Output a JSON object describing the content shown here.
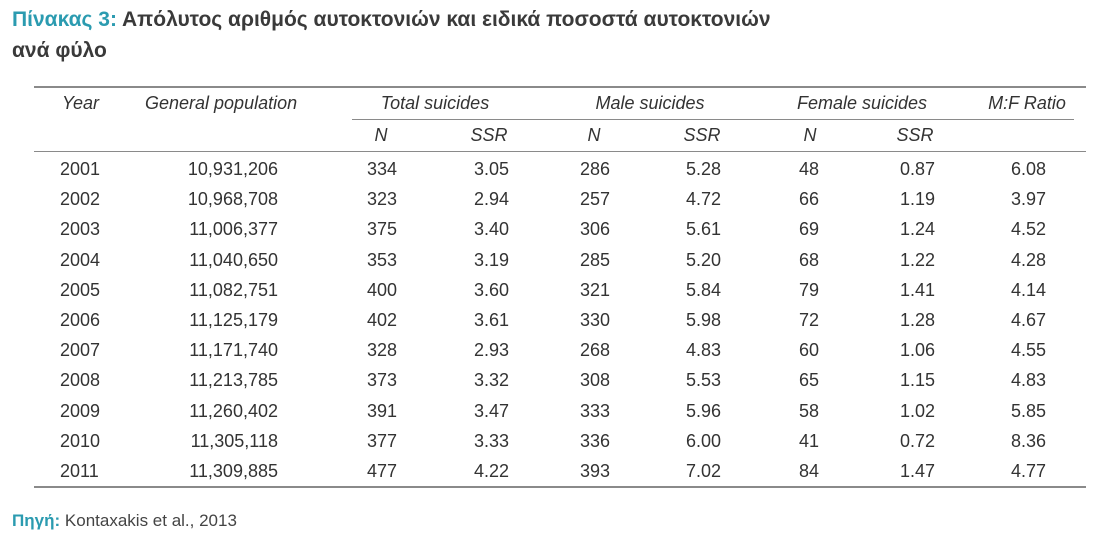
{
  "title": {
    "prefix": "Πίνακας 3:",
    "line1": "Απόλυτος αριθμός αυτοκτονιών και ειδικά ποσοστά αυτοκτονιών",
    "line2": "ανά φύλο"
  },
  "table": {
    "headers": {
      "year": "Year",
      "population": "General population",
      "total": "Total suicides",
      "male": "Male suicides",
      "female": "Female suicides",
      "ratio": "M:F Ratio"
    },
    "subheaders": {
      "total_n": "N",
      "total_ssr": "SSR",
      "male_n": "N",
      "male_ssr": "SSR",
      "female_n": "N",
      "female_ssr": "SSR"
    },
    "rows": [
      [
        "2001",
        "10,931,206",
        "334",
        "3.05",
        "286",
        "5.28",
        "48",
        "0.87",
        "6.08"
      ],
      [
        "2002",
        "10,968,708",
        "323",
        "2.94",
        "257",
        "4.72",
        "66",
        "1.19",
        "3.97"
      ],
      [
        "2003",
        "11,006,377",
        "375",
        "3.40",
        "306",
        "5.61",
        "69",
        "1.24",
        "4.52"
      ],
      [
        "2004",
        "11,040,650",
        "353",
        "3.19",
        "285",
        "5.20",
        "68",
        "1.22",
        "4.28"
      ],
      [
        "2005",
        "11,082,751",
        "400",
        "3.60",
        "321",
        "5.84",
        "79",
        "1.41",
        "4.14"
      ],
      [
        "2006",
        "11,125,179",
        "402",
        "3.61",
        "330",
        "5.98",
        "72",
        "1.28",
        "4.67"
      ],
      [
        "2007",
        "11,171,740",
        "328",
        "2.93",
        "268",
        "4.83",
        "60",
        "1.06",
        "4.55"
      ],
      [
        "2008",
        "11,213,785",
        "373",
        "3.32",
        "308",
        "5.53",
        "65",
        "1.15",
        "4.83"
      ],
      [
        "2009",
        "11,260,402",
        "391",
        "3.47",
        "333",
        "5.96",
        "58",
        "1.02",
        "5.85"
      ],
      [
        "2010",
        "11,305,118",
        "377",
        "3.33",
        "336",
        "6.00",
        "41",
        "0.72",
        "8.36"
      ],
      [
        "2011",
        "11,309,885",
        "477",
        "4.22",
        "393",
        "7.02",
        "84",
        "1.47",
        "4.77"
      ]
    ]
  },
  "source": {
    "label": "Πηγή:",
    "text": "Kontaxakis et al., 2013"
  }
}
